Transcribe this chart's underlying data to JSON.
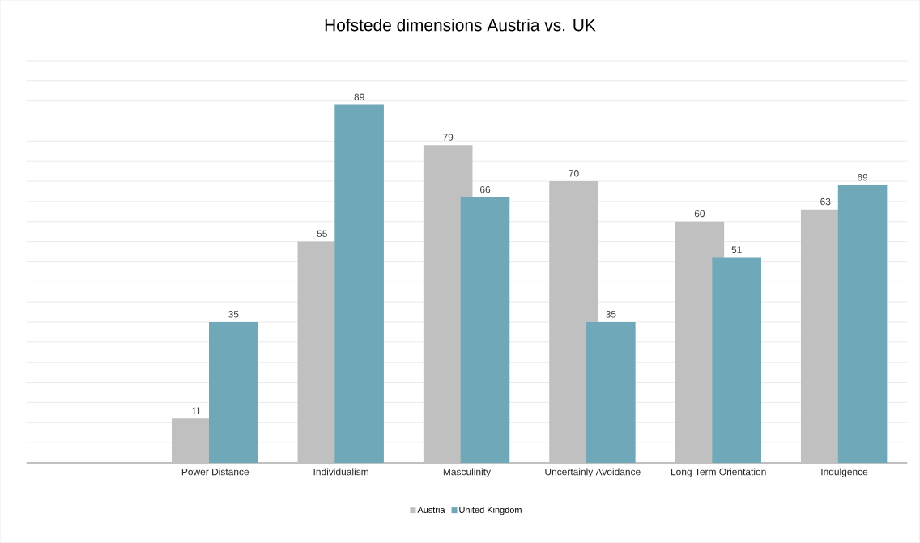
{
  "chart_data": {
    "type": "bar",
    "title": "Hofstede dimensions Austria vs. UK",
    "categories": [
      null,
      "Power Distance",
      "Individualism",
      "Masculinity",
      "Uncertainly Avoidance",
      "Long Term Orientation",
      "Indulgence"
    ],
    "series": [
      {
        "name": "Austria",
        "color": "#c0c0c0",
        "values": [
          null,
          11,
          55,
          79,
          70,
          60,
          63
        ]
      },
      {
        "name": "United Kingdom",
        "color": "#6fa8b9",
        "values": [
          null,
          35,
          89,
          66,
          35,
          51,
          69
        ]
      }
    ],
    "grid": "y",
    "data_labels": true,
    "legend": "bottom",
    "tick_labels": "x"
  }
}
